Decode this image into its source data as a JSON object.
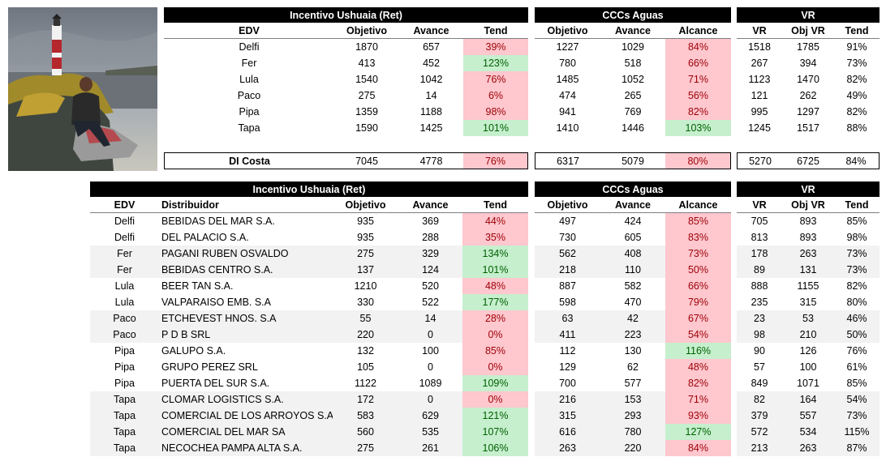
{
  "top": {
    "titles": {
      "ret": "Incentivo Ushuaia (Ret)",
      "ccc": "CCCs Aguas",
      "vr": "VR"
    },
    "headers": {
      "edv": "EDV",
      "objetivo": "Objetivo",
      "avance": "Avance",
      "tend": "Tend",
      "ccc_objetivo": "Objetivo",
      "ccc_avance": "Avance",
      "alcance": "Alcance",
      "vr": "VR",
      "obj_vr": "Obj VR",
      "vr_tend": "Tend"
    },
    "rows": [
      {
        "edv": "Delfi",
        "obj": "1870",
        "av": "657",
        "tend": "39%",
        "tend_status": "red",
        "c_obj": "1227",
        "c_av": "1029",
        "alc": "84%",
        "alc_status": "red",
        "vr": "1518",
        "obj_vr": "1785",
        "vr_tend": "91%"
      },
      {
        "edv": "Fer",
        "obj": "413",
        "av": "452",
        "tend": "123%",
        "tend_status": "green",
        "c_obj": "780",
        "c_av": "518",
        "alc": "66%",
        "alc_status": "red",
        "vr": "267",
        "obj_vr": "394",
        "vr_tend": "73%"
      },
      {
        "edv": "Lula",
        "obj": "1540",
        "av": "1042",
        "tend": "76%",
        "tend_status": "red",
        "c_obj": "1485",
        "c_av": "1052",
        "alc": "71%",
        "alc_status": "red",
        "vr": "1123",
        "obj_vr": "1470",
        "vr_tend": "82%"
      },
      {
        "edv": "Paco",
        "obj": "275",
        "av": "14",
        "tend": "6%",
        "tend_status": "red",
        "c_obj": "474",
        "c_av": "265",
        "alc": "56%",
        "alc_status": "red",
        "vr": "121",
        "obj_vr": "262",
        "vr_tend": "49%"
      },
      {
        "edv": "Pipa",
        "obj": "1359",
        "av": "1188",
        "tend": "98%",
        "tend_status": "red",
        "c_obj": "941",
        "c_av": "769",
        "alc": "82%",
        "alc_status": "red",
        "vr": "995",
        "obj_vr": "1297",
        "vr_tend": "82%"
      },
      {
        "edv": "Tapa",
        "obj": "1590",
        "av": "1425",
        "tend": "101%",
        "tend_status": "green",
        "c_obj": "1410",
        "c_av": "1446",
        "alc": "103%",
        "alc_status": "green",
        "vr": "1245",
        "obj_vr": "1517",
        "vr_tend": "88%"
      }
    ],
    "total": {
      "label": "DI Costa",
      "obj": "7045",
      "av": "4778",
      "tend": "76%",
      "tend_status": "red",
      "c_obj": "6317",
      "c_av": "5079",
      "alc": "80%",
      "alc_status": "red",
      "vr": "5270",
      "obj_vr": "6725",
      "vr_tend": "84%"
    }
  },
  "bottom": {
    "titles": {
      "ret": "Incentivo Ushuaia (Ret)",
      "ccc": "CCCs Aguas",
      "vr": "VR"
    },
    "headers": {
      "edv": "EDV",
      "distribuidor": "Distribuidor",
      "objetivo": "Objetivo",
      "avance": "Avance",
      "tend": "Tend",
      "ccc_objetivo": "Objetivo",
      "ccc_avance": "Avance",
      "alcance": "Alcance",
      "vr": "VR",
      "obj_vr": "Obj VR",
      "vr_tend": "Tend"
    },
    "rows": [
      {
        "edv": "Delfi",
        "dist": "BEBIDAS DEL MAR S.A.",
        "obj": "935",
        "av": "369",
        "tend": "44%",
        "tend_status": "red",
        "c_obj": "497",
        "c_av": "424",
        "alc": "85%",
        "alc_status": "red",
        "vr": "705",
        "obj_vr": "893",
        "vr_tend": "85%"
      },
      {
        "edv": "Delfi",
        "dist": "DEL PALACIO S.A.",
        "obj": "935",
        "av": "288",
        "tend": "35%",
        "tend_status": "red",
        "c_obj": "730",
        "c_av": "605",
        "alc": "83%",
        "alc_status": "red",
        "vr": "813",
        "obj_vr": "893",
        "vr_tend": "98%"
      },
      {
        "edv": "Fer",
        "dist": "PAGANI RUBEN OSVALDO",
        "obj": "275",
        "av": "329",
        "tend": "134%",
        "tend_status": "green",
        "c_obj": "562",
        "c_av": "408",
        "alc": "73%",
        "alc_status": "red",
        "vr": "178",
        "obj_vr": "263",
        "vr_tend": "73%"
      },
      {
        "edv": "Fer",
        "dist": "BEBIDAS CENTRO S.A.",
        "obj": "137",
        "av": "124",
        "tend": "101%",
        "tend_status": "green",
        "c_obj": "218",
        "c_av": "110",
        "alc": "50%",
        "alc_status": "red",
        "vr": "89",
        "obj_vr": "131",
        "vr_tend": "73%"
      },
      {
        "edv": "Lula",
        "dist": "BEER TAN S.A.",
        "obj": "1210",
        "av": "520",
        "tend": "48%",
        "tend_status": "red",
        "c_obj": "887",
        "c_av": "582",
        "alc": "66%",
        "alc_status": "red",
        "vr": "888",
        "obj_vr": "1155",
        "vr_tend": "82%"
      },
      {
        "edv": "Lula",
        "dist": "VALPARAISO EMB. S.A",
        "obj": "330",
        "av": "522",
        "tend": "177%",
        "tend_status": "green",
        "c_obj": "598",
        "c_av": "470",
        "alc": "79%",
        "alc_status": "red",
        "vr": "235",
        "obj_vr": "315",
        "vr_tend": "80%"
      },
      {
        "edv": "Paco",
        "dist": "ETCHEVEST HNOS. S.A",
        "obj": "55",
        "av": "14",
        "tend": "28%",
        "tend_status": "red",
        "c_obj": "63",
        "c_av": "42",
        "alc": "67%",
        "alc_status": "red",
        "vr": "23",
        "obj_vr": "53",
        "vr_tend": "46%"
      },
      {
        "edv": "Paco",
        "dist": "P D B SRL",
        "obj": "220",
        "av": "0",
        "tend": "0%",
        "tend_status": "red",
        "c_obj": "411",
        "c_av": "223",
        "alc": "54%",
        "alc_status": "red",
        "vr": "98",
        "obj_vr": "210",
        "vr_tend": "50%"
      },
      {
        "edv": "Pipa",
        "dist": "GALUPO S.A.",
        "obj": "132",
        "av": "100",
        "tend": "85%",
        "tend_status": "red",
        "c_obj": "112",
        "c_av": "130",
        "alc": "116%",
        "alc_status": "green",
        "vr": "90",
        "obj_vr": "126",
        "vr_tend": "76%"
      },
      {
        "edv": "Pipa",
        "dist": "GRUPO PEREZ SRL",
        "obj": "105",
        "av": "0",
        "tend": "0%",
        "tend_status": "red",
        "c_obj": "129",
        "c_av": "62",
        "alc": "48%",
        "alc_status": "red",
        "vr": "57",
        "obj_vr": "100",
        "vr_tend": "61%"
      },
      {
        "edv": "Pipa",
        "dist": "PUERTA DEL SUR S.A.",
        "obj": "1122",
        "av": "1089",
        "tend": "109%",
        "tend_status": "green",
        "c_obj": "700",
        "c_av": "577",
        "alc": "82%",
        "alc_status": "red",
        "vr": "849",
        "obj_vr": "1071",
        "vr_tend": "85%"
      },
      {
        "edv": "Tapa",
        "dist": "CLOMAR LOGISTICS S.A.",
        "obj": "172",
        "av": "0",
        "tend": "0%",
        "tend_status": "red",
        "c_obj": "216",
        "c_av": "153",
        "alc": "71%",
        "alc_status": "red",
        "vr": "82",
        "obj_vr": "164",
        "vr_tend": "54%"
      },
      {
        "edv": "Tapa",
        "dist": "COMERCIAL DE LOS ARROYOS S.A.",
        "obj": "583",
        "av": "629",
        "tend": "121%",
        "tend_status": "green",
        "c_obj": "315",
        "c_av": "293",
        "alc": "93%",
        "alc_status": "red",
        "vr": "379",
        "obj_vr": "557",
        "vr_tend": "73%"
      },
      {
        "edv": "Tapa",
        "dist": "COMERCIAL DEL MAR SA",
        "obj": "560",
        "av": "535",
        "tend": "107%",
        "tend_status": "green",
        "c_obj": "616",
        "c_av": "780",
        "alc": "127%",
        "alc_status": "green",
        "vr": "572",
        "obj_vr": "534",
        "vr_tend": "115%"
      },
      {
        "edv": "Tapa",
        "dist": "NECOCHEA PAMPA ALTA S.A.",
        "obj": "275",
        "av": "261",
        "tend": "106%",
        "tend_status": "green",
        "c_obj": "263",
        "c_av": "220",
        "alc": "84%",
        "alc_status": "red",
        "vr": "213",
        "obj_vr": "263",
        "vr_tend": "87%"
      }
    ]
  },
  "colors": {
    "red_fill": "#ffc7ce",
    "red_text": "#9c0006",
    "green_fill": "#c6efce",
    "green_text": "#006100",
    "header": "#000000",
    "zebra": "#f2f2f2"
  }
}
